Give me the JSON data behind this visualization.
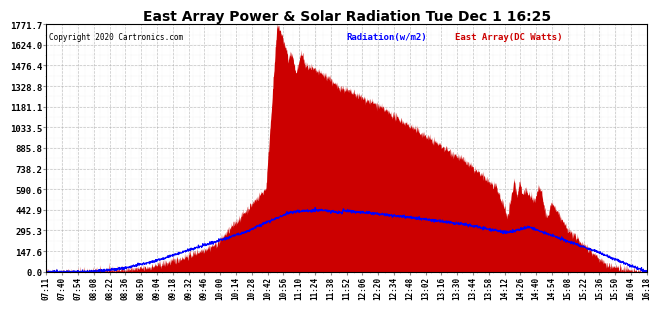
{
  "title": "East Array Power & Solar Radiation Tue Dec 1 16:25",
  "copyright": "Copyright 2020 Cartronics.com",
  "legend_radiation": "Radiation(w/m2)",
  "legend_east_array": "East Array(DC Watts)",
  "ymax": 1771.7,
  "yticks": [
    0.0,
    147.6,
    295.3,
    442.9,
    590.6,
    738.2,
    885.8,
    1033.5,
    1181.1,
    1328.8,
    1476.4,
    1624.0,
    1771.7
  ],
  "background_color": "#ffffff",
  "plot_bg_color": "#ffffff",
  "grid_color": "#aaaaaa",
  "red_fill_color": "#cc0000",
  "blue_line_color": "#0000ff",
  "title_color": "#000000",
  "copyright_color": "#000000",
  "time_labels": [
    "07:11",
    "07:40",
    "07:54",
    "08:08",
    "08:22",
    "08:36",
    "08:50",
    "09:04",
    "09:18",
    "09:32",
    "09:46",
    "10:00",
    "10:14",
    "10:28",
    "10:42",
    "10:56",
    "11:10",
    "11:24",
    "11:38",
    "11:52",
    "12:06",
    "12:20",
    "12:34",
    "12:48",
    "13:02",
    "13:16",
    "13:30",
    "13:44",
    "13:58",
    "14:12",
    "14:26",
    "14:40",
    "14:54",
    "15:08",
    "15:22",
    "15:36",
    "15:50",
    "16:04",
    "16:18"
  ]
}
